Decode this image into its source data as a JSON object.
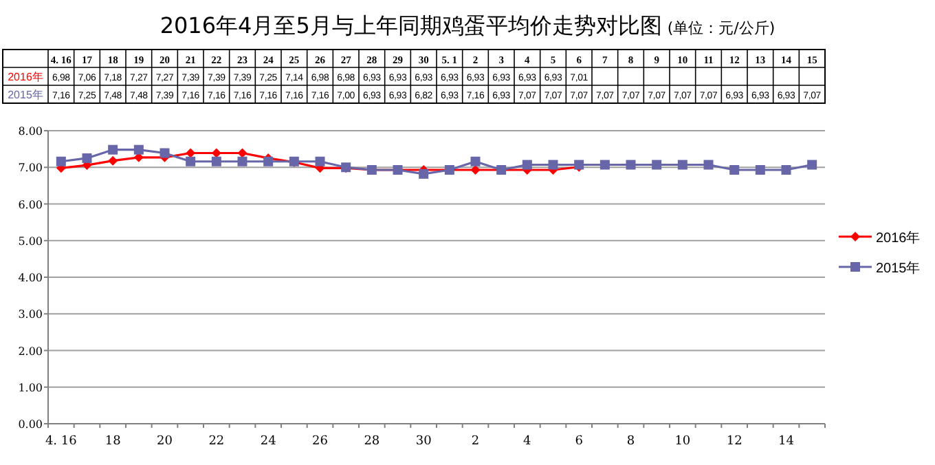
{
  "chart_data": {
    "type": "line",
    "title": "2016年4月至5月与上年同期鸡蛋平均价走势对比图",
    "subtitle": "(单位：元/公斤)",
    "categories": [
      "4. 16",
      "17",
      "18",
      "19",
      "20",
      "21",
      "22",
      "23",
      "24",
      "25",
      "26",
      "27",
      "28",
      "29",
      "30",
      "5. 1",
      "2",
      "3",
      "4",
      "5",
      "6",
      "7",
      "8",
      "9",
      "10",
      "11",
      "12",
      "13",
      "14",
      "15"
    ],
    "series": [
      {
        "name": "2016年",
        "color": "#ff0000",
        "marker": "diamond",
        "values": [
          6.98,
          7.06,
          7.18,
          7.27,
          7.27,
          7.39,
          7.39,
          7.39,
          7.25,
          7.14,
          6.98,
          6.98,
          6.93,
          6.93,
          6.93,
          6.93,
          6.93,
          6.93,
          6.93,
          6.93,
          7.01,
          null,
          null,
          null,
          null,
          null,
          null,
          null,
          null,
          null
        ],
        "value_labels": [
          "6,98",
          "7,06",
          "7,18",
          "7,27",
          "7,27",
          "7,39",
          "7,39",
          "7,39",
          "7,25",
          "7,14",
          "6,98",
          "6,98",
          "6,93",
          "6,93",
          "6,93",
          "6,93",
          "6,93",
          "6,93",
          "6,93",
          "6,93",
          "7,01",
          null,
          null,
          null,
          null,
          null,
          null,
          null,
          null,
          null
        ]
      },
      {
        "name": "2015年",
        "color": "#6666a8",
        "marker": "square",
        "values": [
          7.16,
          7.25,
          7.48,
          7.48,
          7.39,
          7.16,
          7.16,
          7.16,
          7.16,
          7.16,
          7.16,
          7.0,
          6.93,
          6.93,
          6.82,
          6.93,
          7.16,
          6.93,
          7.07,
          7.07,
          7.07,
          7.07,
          7.07,
          7.07,
          7.07,
          7.07,
          6.93,
          6.93,
          6.93,
          7.07
        ],
        "value_labels": [
          "7,16",
          "7,25",
          "7,48",
          "7,48",
          "7,39",
          "7,16",
          "7,16",
          "7,16",
          "7,16",
          "7,16",
          "7,16",
          "7,00",
          "6,93",
          "6,93",
          "6,82",
          "6,93",
          "7,16",
          "6,93",
          "7,07",
          "7,07",
          "7,07",
          "7,07",
          "7,07",
          "7,07",
          "7,07",
          "7,07",
          "6,93",
          "6,93",
          "6,93",
          "7,07"
        ]
      }
    ],
    "ylim": [
      0,
      8
    ],
    "yticks": [
      {
        "value": 0,
        "label": "0.00"
      },
      {
        "value": 1,
        "label": "1.00"
      },
      {
        "value": 2,
        "label": "2.00"
      },
      {
        "value": 3,
        "label": "3.00"
      },
      {
        "value": 4,
        "label": "4.00"
      },
      {
        "value": 5,
        "label": "5.00"
      },
      {
        "value": 6,
        "label": "6.00"
      },
      {
        "value": 7,
        "label": "7.00"
      },
      {
        "value": 8,
        "label": "8.00"
      }
    ],
    "grid": "y",
    "legend": "right"
  }
}
